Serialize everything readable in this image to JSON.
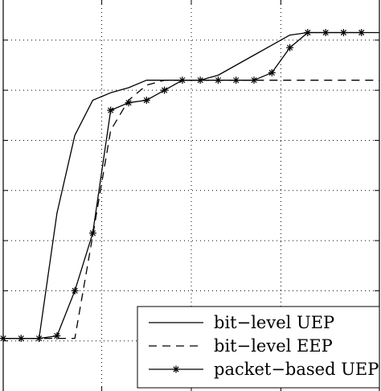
{
  "chart_data": {
    "type": "line",
    "title": "",
    "xlabel": "",
    "ylabel": "",
    "xlim": [
      -0.5,
      20.5
    ],
    "ylim": [
      0,
      7.8
    ],
    "x_grid": [
      5,
      10,
      15
    ],
    "y_grid": [
      1,
      2,
      3,
      4,
      5,
      6,
      7
    ],
    "grid": true,
    "legend_position": "bottom-right",
    "series": [
      {
        "name": "bit−level UEP",
        "style": "solid",
        "marker": "none",
        "x": [
          -0.5,
          0,
          1,
          1.5,
          2.5,
          3.5,
          4.5,
          5.5,
          6.5,
          7.5,
          8.5,
          9.5,
          10.5,
          11.5,
          12.5,
          13.5,
          14.5,
          15.5,
          16.5,
          17.5,
          18.5,
          19.5,
          20.5
        ],
        "y": [
          1.05,
          1.05,
          1.05,
          1.05,
          3.55,
          5.1,
          5.8,
          5.95,
          6.05,
          6.2,
          6.2,
          6.2,
          6.2,
          6.3,
          6.5,
          6.7,
          6.9,
          7.1,
          7.15,
          7.15,
          7.15,
          7.15,
          7.15
        ]
      },
      {
        "name": "bit−level EEP",
        "style": "dashed",
        "marker": "none",
        "x": [
          -0.5,
          0,
          1,
          2,
          3,
          3.5,
          4.5,
          5.5,
          6.5,
          7.5,
          8.5,
          9.5,
          10.5,
          11.5,
          12.5,
          13.5,
          14.5,
          15.5,
          16.5,
          17.5,
          18.5,
          19.5,
          20.5
        ],
        "y": [
          1.05,
          1.05,
          1.05,
          1.05,
          1.05,
          1.05,
          3.1,
          5.2,
          5.8,
          6.1,
          6.2,
          6.2,
          6.2,
          6.2,
          6.2,
          6.2,
          6.2,
          6.2,
          6.2,
          6.2,
          6.2,
          6.2,
          6.2
        ]
      },
      {
        "name": "packet−based UEP",
        "style": "solid",
        "marker": "asterisk",
        "x": [
          -0.5,
          0.5,
          1.5,
          2.5,
          3.5,
          4.5,
          5.5,
          6.5,
          7.5,
          8.5,
          9.5,
          10.5,
          11.5,
          12.5,
          13.5,
          14.5,
          15.5,
          16.5,
          17.5,
          18.5,
          19.5
        ],
        "y": [
          1.05,
          1.05,
          1.05,
          1.1,
          2.0,
          3.15,
          5.6,
          5.75,
          5.8,
          6.0,
          6.2,
          6.2,
          6.2,
          6.2,
          6.2,
          6.35,
          6.85,
          7.15,
          7.15,
          7.15,
          7.15
        ]
      }
    ]
  }
}
